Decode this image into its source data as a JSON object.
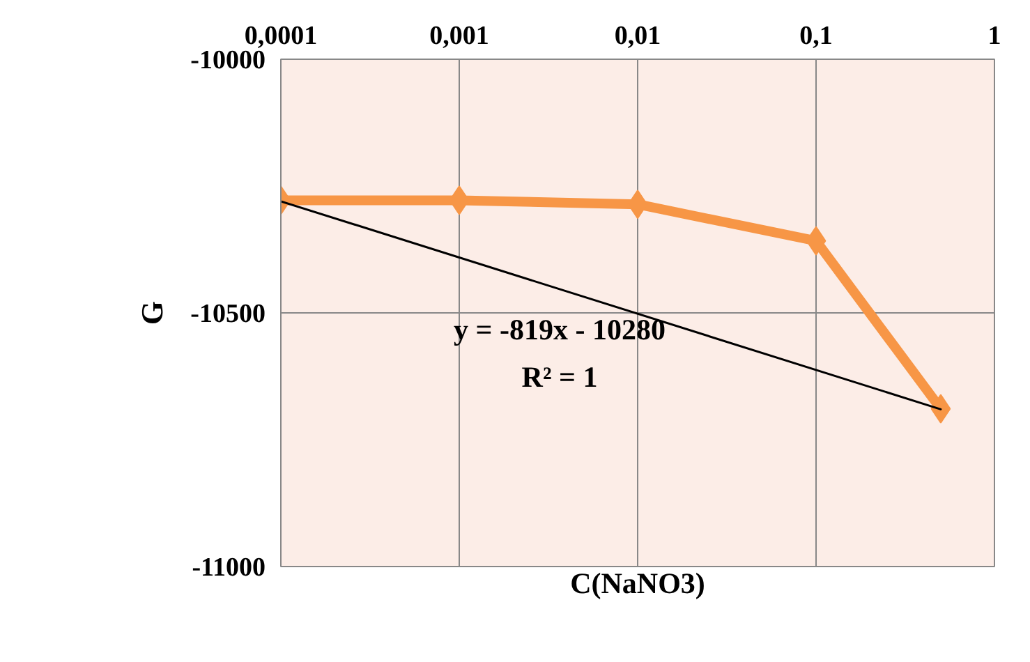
{
  "chart_data": {
    "type": "line",
    "xlabel": "C(NaNO3)",
    "ylabel": "G",
    "x": [
      0.0001,
      0.001,
      0.01,
      0.1,
      0.5
    ],
    "series": [
      {
        "color": "#f79646",
        "values": [
          -10278,
          -10278,
          -10286,
          -10358,
          -10689
        ],
        "marker": "diamond",
        "line_style": "solid"
      },
      {
        "type": "line",
        "color": "#000000",
        "x": [
          0.0001,
          0.5
        ],
        "values": [
          -10280,
          -10690
        ],
        "marker": "none",
        "line_style": "solid"
      }
    ],
    "log": "x",
    "xlim": [
      0.0001,
      1
    ],
    "xticks": [
      {
        "value": 0.0001,
        "label": "0,0001"
      },
      {
        "value": 0.001,
        "label": "0,001"
      },
      {
        "value": 0.01,
        "label": "0,01"
      },
      {
        "value": 0.1,
        "label": "0,1"
      },
      1
    ],
    "ylim": [
      -11000,
      -10000
    ],
    "yticks": [
      -11000,
      -10500,
      -10000
    ],
    "grid": true,
    "annotations": [
      "y = -819x - 10280",
      "R² = 1"
    ]
  }
}
